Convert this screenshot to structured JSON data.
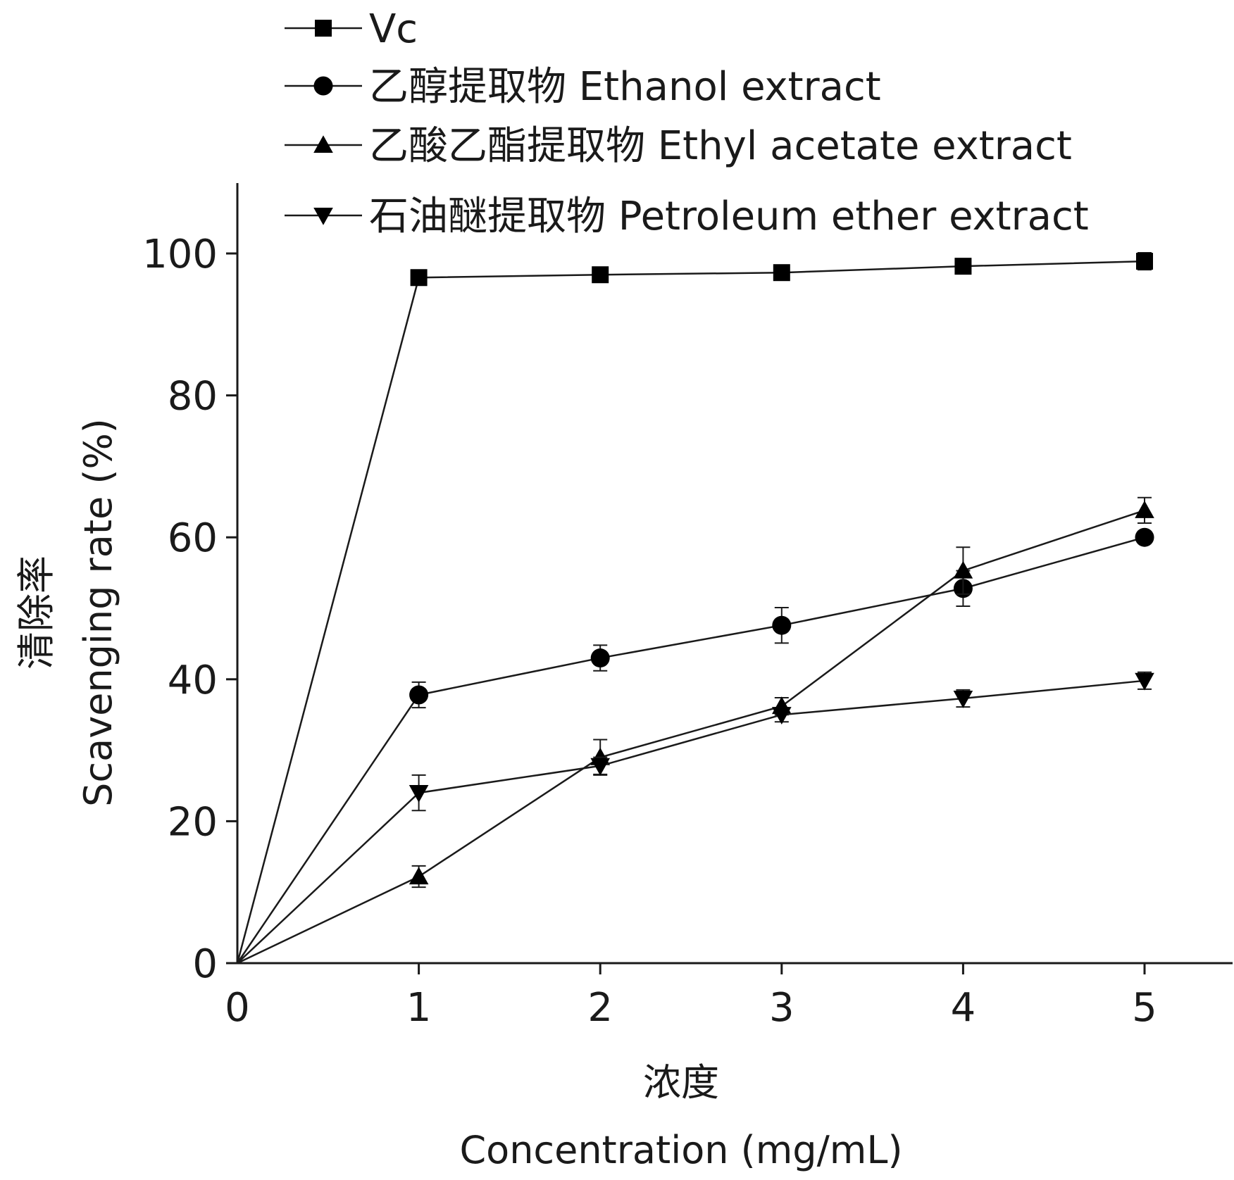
{
  "chart_data": {
    "type": "line",
    "xlabel_cn": "浓度",
    "xlabel": "Concentration (mg/mL)",
    "ylabel_cn": "清除率",
    "ylabel": "Scavenging rate (%)",
    "x": [
      0,
      1,
      2,
      3,
      4,
      5
    ],
    "xlim": [
      0,
      5.5
    ],
    "ylim": [
      0,
      110
    ],
    "xticks": [
      0,
      1,
      2,
      3,
      4,
      5
    ],
    "yticks": [
      0,
      20,
      40,
      60,
      80,
      100
    ],
    "grid": false,
    "legend_position": "top",
    "series": [
      {
        "name": "Vc",
        "marker": "square",
        "values": [
          0,
          96.6,
          97.0,
          97.3,
          98.2,
          98.9
        ],
        "errors": [
          0,
          0.5,
          0.5,
          0.6,
          0.5,
          1.2
        ]
      },
      {
        "name": "乙醇提取物 Ethanol extract",
        "marker": "circle",
        "values": [
          0,
          37.8,
          43.0,
          47.6,
          52.8,
          60.0
        ],
        "errors": [
          0,
          1.8,
          1.8,
          2.5,
          2.5,
          0.8
        ]
      },
      {
        "name": "乙酸乙酯提取物 Ethyl acetate extract",
        "marker": "triangle-up",
        "values": [
          0,
          12.2,
          29.0,
          36.2,
          55.3,
          63.8
        ],
        "errors": [
          0,
          1.5,
          2.5,
          1.2,
          3.3,
          1.8
        ]
      },
      {
        "name": "石油醚提取物 Petroleum ether extract",
        "marker": "triangle-down",
        "values": [
          0,
          24.0,
          27.8,
          35.0,
          37.3,
          39.8
        ],
        "errors": [
          0,
          2.5,
          1.2,
          1.0,
          1.2,
          1.2
        ]
      }
    ]
  }
}
